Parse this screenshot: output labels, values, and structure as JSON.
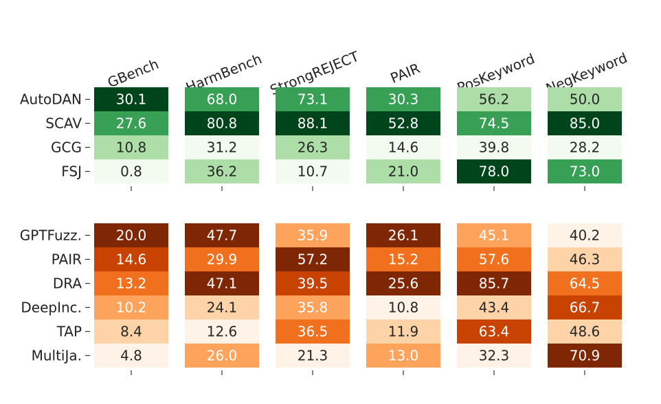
{
  "chart_data": {
    "type": "heatmap",
    "columns": [
      "GBench",
      "HarmBench",
      "StrongREJECT",
      "PAIR",
      "PosKeyword",
      "NegKeyword"
    ],
    "groups": [
      {
        "colormap": "green",
        "rows": [
          "AutoDAN",
          "SCAV",
          "GCG",
          "FSJ"
        ],
        "values": [
          [
            "30.1",
            "68.0",
            "73.1",
            "30.3",
            "56.2",
            "50.0"
          ],
          [
            "27.6",
            "80.8",
            "88.1",
            "52.8",
            "74.5",
            "85.0"
          ],
          [
            "10.8",
            "31.2",
            "26.3",
            "14.6",
            "39.8",
            "28.2"
          ],
          [
            "0.8",
            "36.2",
            "10.7",
            "21.0",
            "78.0",
            "73.0"
          ]
        ],
        "levels": [
          [
            4,
            2,
            2,
            2,
            1,
            1
          ],
          [
            2,
            4,
            4,
            4,
            2,
            4
          ],
          [
            1,
            0,
            1,
            0,
            0,
            0
          ],
          [
            0,
            1,
            0,
            1,
            4,
            2
          ]
        ]
      },
      {
        "colormap": "orange",
        "rows": [
          "GPTFuzz.",
          "PAIR",
          "DRA",
          "DeepInc.",
          "TAP",
          "MultiJa."
        ],
        "values": [
          [
            "20.0",
            "47.7",
            "35.9",
            "26.1",
            "45.1",
            "40.2"
          ],
          [
            "14.6",
            "29.9",
            "57.2",
            "15.2",
            "57.6",
            "46.3"
          ],
          [
            "13.2",
            "47.1",
            "39.5",
            "25.6",
            "85.7",
            "64.5"
          ],
          [
            "10.2",
            "24.1",
            "35.8",
            "10.8",
            "43.4",
            "66.7"
          ],
          [
            "8.4",
            "12.6",
            "36.5",
            "11.9",
            "63.4",
            "48.6"
          ],
          [
            "4.8",
            "26.0",
            "21.3",
            "13.0",
            "32.3",
            "70.9"
          ]
        ],
        "levels": [
          [
            5,
            5,
            2,
            5,
            2,
            0
          ],
          [
            4,
            3,
            5,
            3,
            3,
            1
          ],
          [
            3,
            5,
            4,
            5,
            5,
            3
          ],
          [
            2,
            1,
            2,
            0,
            1,
            4
          ],
          [
            1,
            0,
            3,
            1,
            4,
            1
          ],
          [
            0,
            2,
            0,
            2,
            0,
            5
          ]
        ]
      }
    ],
    "colors": {
      "green": [
        "#f3faf0",
        "#addea7",
        "#37a055",
        "#37a055",
        "#00441b"
      ],
      "orange": [
        "#fff2e6",
        "#fdd3a7",
        "#fda35c",
        "#f0701d",
        "#c84201",
        "#7f2704"
      ]
    },
    "text_colors": {
      "dark": "#262626",
      "light": "#ffffff"
    }
  }
}
